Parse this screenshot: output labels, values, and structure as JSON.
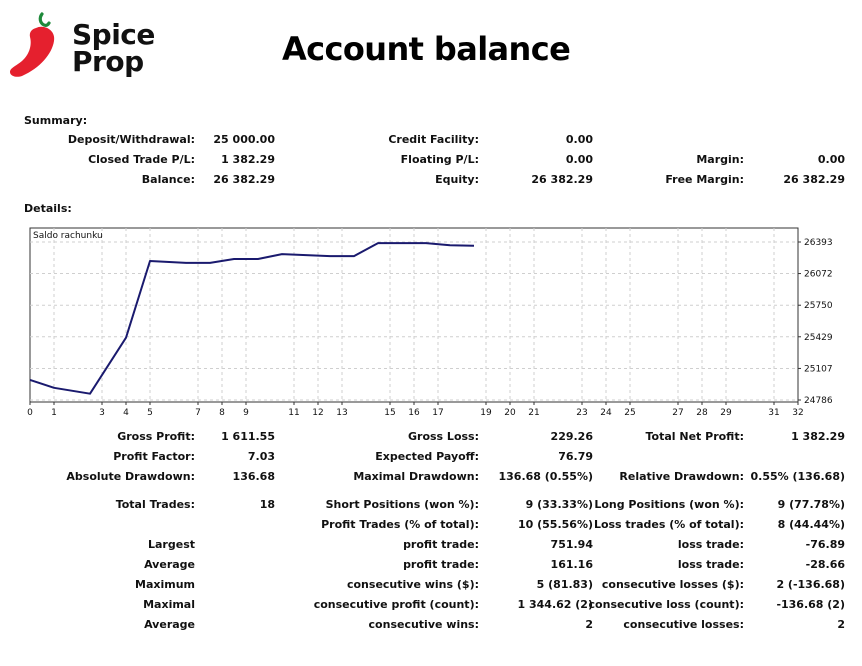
{
  "brand": {
    "name_line1": "Spice",
    "name_line2": "Prop",
    "pepper_color": "#e5202e",
    "stem_color": "#1f8a3b"
  },
  "title": "Account balance",
  "summary": {
    "heading": "Summary:",
    "rows": [
      [
        {
          "label": "Deposit/Withdrawal:",
          "value": "25 000.00"
        },
        {
          "label": "Credit Facility:",
          "value": "0.00"
        },
        {
          "label": "",
          "value": ""
        }
      ],
      [
        {
          "label": "Closed Trade P/L:",
          "value": "1 382.29"
        },
        {
          "label": "Floating P/L:",
          "value": "0.00"
        },
        {
          "label": "Margin:",
          "value": "0.00"
        }
      ],
      [
        {
          "label": "Balance:",
          "value": "26 382.29"
        },
        {
          "label": "Equity:",
          "value": "26 382.29"
        },
        {
          "label": "Free Margin:",
          "value": "26 382.29"
        }
      ]
    ]
  },
  "details": {
    "heading": "Details:"
  },
  "chart_data": {
    "type": "line",
    "title": "Saldo rachunku",
    "series": [
      {
        "color": "#1a1a6e",
        "x": [
          0,
          1,
          2.5,
          4,
          5,
          6.5,
          7.5,
          8.5,
          9.5,
          10.5,
          11.5,
          12.5,
          13.5,
          14.5,
          15.5,
          16.5,
          17.5,
          18.5
        ],
        "y": [
          24990,
          24910,
          24850,
          25420,
          26200,
          26180,
          26180,
          26220,
          26220,
          26270,
          26260,
          26250,
          26250,
          26382,
          26382,
          26382,
          26360,
          26355
        ]
      }
    ],
    "xlim": [
      0,
      32
    ],
    "ylim": [
      24786,
      26393
    ],
    "xticks": [
      0,
      1,
      3,
      4,
      5,
      7,
      8,
      9,
      11,
      12,
      13,
      15,
      16,
      17,
      19,
      20,
      21,
      23,
      24,
      25,
      27,
      28,
      29,
      31,
      32
    ],
    "yticks": [
      26393,
      26072,
      25750,
      25429,
      25107,
      24786
    ],
    "grid": true
  },
  "stats": {
    "rows": [
      [
        {
          "label": "Gross Profit:",
          "value": "1 611.55"
        },
        {
          "label": "Gross Loss:",
          "value": "229.26"
        },
        {
          "label": "Total Net Profit:",
          "value": "1 382.29"
        }
      ],
      [
        {
          "label": "Profit Factor:",
          "value": "7.03"
        },
        {
          "label": "Expected Payoff:",
          "value": "76.79"
        },
        {
          "label": "",
          "value": ""
        }
      ],
      [
        {
          "label": "Absolute Drawdown:",
          "value": "136.68"
        },
        {
          "label": "Maximal Drawdown:",
          "value": "136.68 (0.55%)"
        },
        {
          "label": "Relative Drawdown:",
          "value": "0.55% (136.68)"
        }
      ],
      [
        {
          "label": "Total Trades:",
          "value": "18"
        },
        {
          "label": "Short Positions (won %):",
          "value": "9 (33.33%)"
        },
        {
          "label": "Long Positions (won %):",
          "value": "9 (77.78%)"
        }
      ],
      [
        {
          "label": "",
          "value": ""
        },
        {
          "label": "Profit Trades (% of total):",
          "value": "10 (55.56%)"
        },
        {
          "label": "Loss trades (% of total):",
          "value": "8 (44.44%)"
        }
      ],
      [
        {
          "label": "Largest",
          "value": ""
        },
        {
          "label": "profit trade:",
          "value": "751.94"
        },
        {
          "label": "loss trade:",
          "value": "-76.89"
        }
      ],
      [
        {
          "label": "Average",
          "value": ""
        },
        {
          "label": "profit trade:",
          "value": "161.16"
        },
        {
          "label": "loss trade:",
          "value": "-28.66"
        }
      ],
      [
        {
          "label": "Maximum",
          "value": ""
        },
        {
          "label": "consecutive wins ($):",
          "value": "5 (81.83)"
        },
        {
          "label": "consecutive losses ($):",
          "value": "2 (-136.68)"
        }
      ],
      [
        {
          "label": "Maximal",
          "value": ""
        },
        {
          "label": "consecutive profit (count):",
          "value": "1 344.62 (2)"
        },
        {
          "label": "consecutive loss (count):",
          "value": "-136.68 (2)"
        }
      ],
      [
        {
          "label": "Average",
          "value": ""
        },
        {
          "label": "consecutive wins:",
          "value": "2"
        },
        {
          "label": "consecutive losses:",
          "value": "2"
        }
      ]
    ]
  }
}
